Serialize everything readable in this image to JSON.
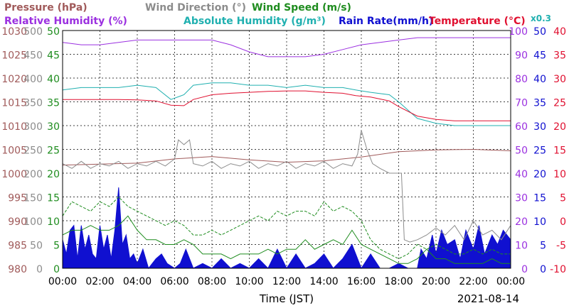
{
  "chart_data": {
    "type": "line",
    "legend": {
      "row1": [
        {
          "text": "Pressure (hPa)",
          "color": "#a05a5a"
        },
        {
          "text": "Wind Direction (°)",
          "color": "#8c8c8c"
        },
        {
          "text": "Wind Speed (m/s)",
          "color": "#1e8c1e"
        }
      ],
      "row2": [
        {
          "text": "Relative Humidity (%)",
          "color": "#9b30e0"
        },
        {
          "text": "Absolute Humidity (g/m³)",
          "color": "#20b0b0"
        },
        {
          "text": "Rain Rate(mm/h)",
          "color": "#1010d0"
        },
        {
          "text": "Temperature (°C)",
          "color": "#e01030"
        }
      ],
      "x_factor": "x0.3"
    },
    "xlabel": "Time (JST)",
    "date": "2021-08-14",
    "x_ticks": [
      "00:00",
      "02:00",
      "04:00",
      "06:00",
      "08:00",
      "10:00",
      "12:00",
      "14:00",
      "16:00",
      "18:00",
      "20:00",
      "22:00",
      "00:00"
    ],
    "x_range_hours": [
      0,
      24
    ],
    "left_axes": [
      {
        "name": "Pressure (hPa)",
        "color": "#a05a5a",
        "ticks": [
          "1030",
          "1025",
          "1020",
          "1015",
          "1010",
          "1005",
          "1000",
          "995",
          "990",
          "985",
          "980"
        ]
      },
      {
        "name": "Wind Direction (°)",
        "color": "#8c8c8c",
        "ticks": [
          "500",
          "450",
          "400",
          "350",
          "300",
          "250",
          "200",
          "150",
          "100",
          "50",
          "0"
        ]
      },
      {
        "name": "Wind Speed (m/s)",
        "color": "#1e8c1e",
        "ticks": [
          "50",
          "45",
          "40",
          "35",
          "30",
          "25",
          "20",
          "15",
          "10",
          "5",
          "0"
        ]
      }
    ],
    "right_axes": [
      {
        "name": "Relative Humidity (%)",
        "color": "#9b30e0",
        "ticks": [
          "100",
          "90",
          "80",
          "70",
          "60",
          "50",
          "40",
          "30",
          "20",
          "10",
          "0"
        ]
      },
      {
        "name": "Rain Rate(mm/h)",
        "color": "#1010d0",
        "ticks": [
          "50",
          "45",
          "40",
          "35",
          "30",
          "25",
          "20",
          "15",
          "10",
          "5",
          "0"
        ]
      },
      {
        "name": "Temperature (°C)",
        "color": "#e01030",
        "ticks": [
          "40",
          "35",
          "30",
          "25",
          "20",
          "15",
          "10",
          "5",
          "0",
          "-5",
          "-10"
        ]
      }
    ],
    "grid": true,
    "series": [
      {
        "name": "Relative Humidity (%)",
        "axis": "humidity_pct",
        "color": "#9b30e0",
        "x": [
          0,
          1,
          2,
          3,
          4,
          5,
          6,
          7,
          8,
          9,
          10,
          11,
          12,
          13,
          14,
          15,
          16,
          17,
          18,
          19,
          20,
          21,
          22,
          23,
          24
        ],
        "y": [
          95,
          94,
          94,
          95,
          96,
          96,
          96,
          96,
          96,
          94,
          91,
          89,
          89,
          89,
          90,
          92,
          94,
          95,
          96,
          97,
          97,
          97,
          97,
          97,
          97
        ]
      },
      {
        "name": "Absolute Humidity (g/m³) x0.3",
        "axis": "humidity_pct",
        "color": "#20b0b0",
        "x": [
          0,
          1,
          2,
          3,
          4,
          5,
          5.8,
          6.5,
          7,
          8,
          9,
          10,
          11,
          12,
          13,
          14,
          15,
          15.7,
          16.5,
          17.5,
          18,
          19,
          20,
          21,
          22,
          23,
          24
        ],
        "y": [
          75,
          76,
          76,
          76,
          77,
          76,
          71,
          73,
          77,
          78,
          78,
          77,
          77,
          76,
          77,
          76,
          76,
          75,
          74,
          73,
          70,
          63,
          61,
          60,
          60,
          60,
          60
        ]
      },
      {
        "name": "Temperature (°C)",
        "axis": "temperature",
        "color": "#e01030",
        "x": [
          0,
          1,
          2,
          3,
          4,
          5,
          5.8,
          6.5,
          7,
          8,
          9,
          10,
          11,
          12,
          13,
          14,
          15,
          15.7,
          16.5,
          17.5,
          18,
          19,
          20,
          21,
          22,
          23,
          24
        ],
        "y": [
          25.5,
          25.5,
          25.5,
          25.5,
          25.4,
          25.2,
          24.3,
          24.2,
          25.5,
          26.5,
          26.8,
          27,
          27.2,
          27.3,
          27.3,
          27,
          26.8,
          26.3,
          26,
          25.2,
          24,
          22,
          21.3,
          21,
          21,
          21,
          21
        ]
      },
      {
        "name": "Pressure (hPa)",
        "axis": "pressure",
        "color": "#a05a5a",
        "x": [
          0,
          2,
          4,
          6,
          8,
          10,
          12,
          14,
          16,
          18,
          20,
          22,
          24
        ],
        "y": [
          1001.7,
          1001.9,
          1002.1,
          1003,
          1003.5,
          1002.8,
          1002.3,
          1002.6,
          1003.4,
          1004.5,
          1004.9,
          1005,
          1004.7
        ]
      },
      {
        "name": "Wind Direction (°)",
        "axis": "wind_dir",
        "color": "#8c8c8c",
        "x": [
          0,
          0.5,
          1,
          1.5,
          2,
          2.5,
          3,
          3.5,
          4,
          4.5,
          5,
          5.5,
          6,
          6.2,
          6.5,
          6.8,
          7,
          7.5,
          8,
          8.5,
          9,
          9.5,
          10,
          10.5,
          11,
          11.5,
          12,
          12.5,
          13,
          13.5,
          14,
          14.5,
          15,
          15.5,
          15.8,
          16,
          16.3,
          16.6,
          17,
          17.5,
          18,
          18.15,
          18.3,
          18.6,
          19,
          19.5,
          20,
          20.5,
          21,
          21.5,
          22,
          22.5,
          23,
          23.5,
          24
        ],
        "y": [
          220,
          210,
          225,
          210,
          220,
          215,
          225,
          210,
          220,
          215,
          225,
          215,
          230,
          270,
          260,
          270,
          220,
          215,
          225,
          210,
          220,
          215,
          225,
          210,
          220,
          215,
          225,
          210,
          220,
          215,
          225,
          210,
          220,
          215,
          240,
          290,
          250,
          220,
          210,
          200,
          200,
          200,
          60,
          55,
          60,
          70,
          85,
          70,
          90,
          60,
          100,
          70,
          80,
          60,
          90
        ]
      },
      {
        "name": "Wind Speed (m/s)",
        "axis": "wind_speed",
        "color": "#1e8c1e",
        "x": [
          0,
          0.5,
          1,
          1.5,
          2,
          2.5,
          3,
          3.5,
          4,
          4.5,
          5,
          5.5,
          6,
          6.5,
          7,
          7.5,
          8,
          8.5,
          9,
          9.5,
          10,
          10.5,
          11,
          11.5,
          12,
          12.5,
          13,
          13.5,
          14,
          14.5,
          15,
          15.5,
          16,
          16.5,
          17,
          17.5,
          18,
          18.5,
          19,
          19.5,
          20,
          20.5,
          21,
          21.5,
          22,
          22.5,
          23,
          23.5,
          24
        ],
        "y": [
          7,
          8,
          8,
          9,
          8,
          8,
          9,
          11,
          8,
          6,
          6,
          5,
          5,
          6,
          5,
          3,
          3,
          3,
          2,
          3,
          3,
          3,
          4,
          3,
          4,
          4,
          6,
          4,
          5,
          6,
          5,
          8,
          5,
          4,
          3,
          2,
          1,
          1,
          2,
          4,
          2,
          2,
          1,
          1,
          1,
          1,
          2,
          1,
          1
        ]
      },
      {
        "name": "Wind Speed Gust (m/s)",
        "axis": "wind_speed",
        "color": "#1e8c1e",
        "dashed": true,
        "x": [
          0,
          0.5,
          1,
          1.5,
          2,
          2.5,
          3,
          3.5,
          4,
          4.5,
          5,
          5.5,
          6,
          6.5,
          7,
          7.5,
          8,
          8.5,
          9,
          9.5,
          10,
          10.5,
          11,
          11.5,
          12,
          12.5,
          13,
          13.5,
          14,
          14.5,
          15,
          15.5,
          16,
          16.5,
          17,
          17.5,
          18,
          18.5,
          19,
          19.5,
          20,
          20.5,
          21,
          21.5,
          22,
          22.5,
          23,
          23.5,
          24
        ],
        "y": [
          11,
          14,
          13,
          12,
          14,
          13,
          15,
          13,
          12,
          11,
          10,
          9,
          10,
          9,
          7,
          7,
          8,
          7,
          8,
          9,
          10,
          11,
          10,
          12,
          11,
          12,
          12,
          11,
          14,
          12,
          13,
          12,
          10,
          6,
          4,
          3,
          2,
          3,
          5,
          4,
          5,
          4,
          3,
          3,
          4,
          3,
          4,
          3,
          3
        ]
      },
      {
        "name": "Rain Rate(mm/h)",
        "axis": "rain",
        "color": "#1010d0",
        "fill": true,
        "x": [
          0,
          0.2,
          0.4,
          0.6,
          0.8,
          1,
          1.2,
          1.4,
          1.6,
          1.8,
          2,
          2.2,
          2.4,
          2.6,
          2.8,
          3,
          3.2,
          3.4,
          3.6,
          3.8,
          4,
          4.3,
          4.6,
          5,
          5.3,
          5.6,
          6,
          6.3,
          6.6,
          7,
          7.5,
          8,
          8.5,
          9,
          9.5,
          10,
          10.5,
          11,
          11.5,
          12,
          12.5,
          13,
          13.5,
          14,
          14.5,
          15,
          15.5,
          16,
          16.5,
          17,
          17.5,
          18,
          18.5,
          19,
          19.2,
          19.5,
          19.8,
          20,
          20.3,
          20.6,
          21,
          21.3,
          21.6,
          22,
          22.3,
          22.6,
          23,
          23.3,
          23.6,
          24
        ],
        "y": [
          6,
          3,
          8,
          9,
          2,
          9,
          4,
          7,
          3,
          2,
          9,
          4,
          7,
          2,
          8,
          17,
          5,
          7,
          2,
          3,
          1,
          4,
          0,
          2,
          3,
          1,
          0,
          1,
          4,
          0,
          1,
          0,
          2,
          0,
          1,
          0,
          2,
          0,
          4,
          0,
          3,
          0,
          1,
          3,
          0,
          2,
          5,
          0,
          3,
          0,
          0,
          1,
          0,
          0,
          4,
          2,
          7,
          3,
          8,
          5,
          6,
          2,
          8,
          4,
          9,
          3,
          7,
          5,
          8,
          6
        ]
      }
    ]
  }
}
